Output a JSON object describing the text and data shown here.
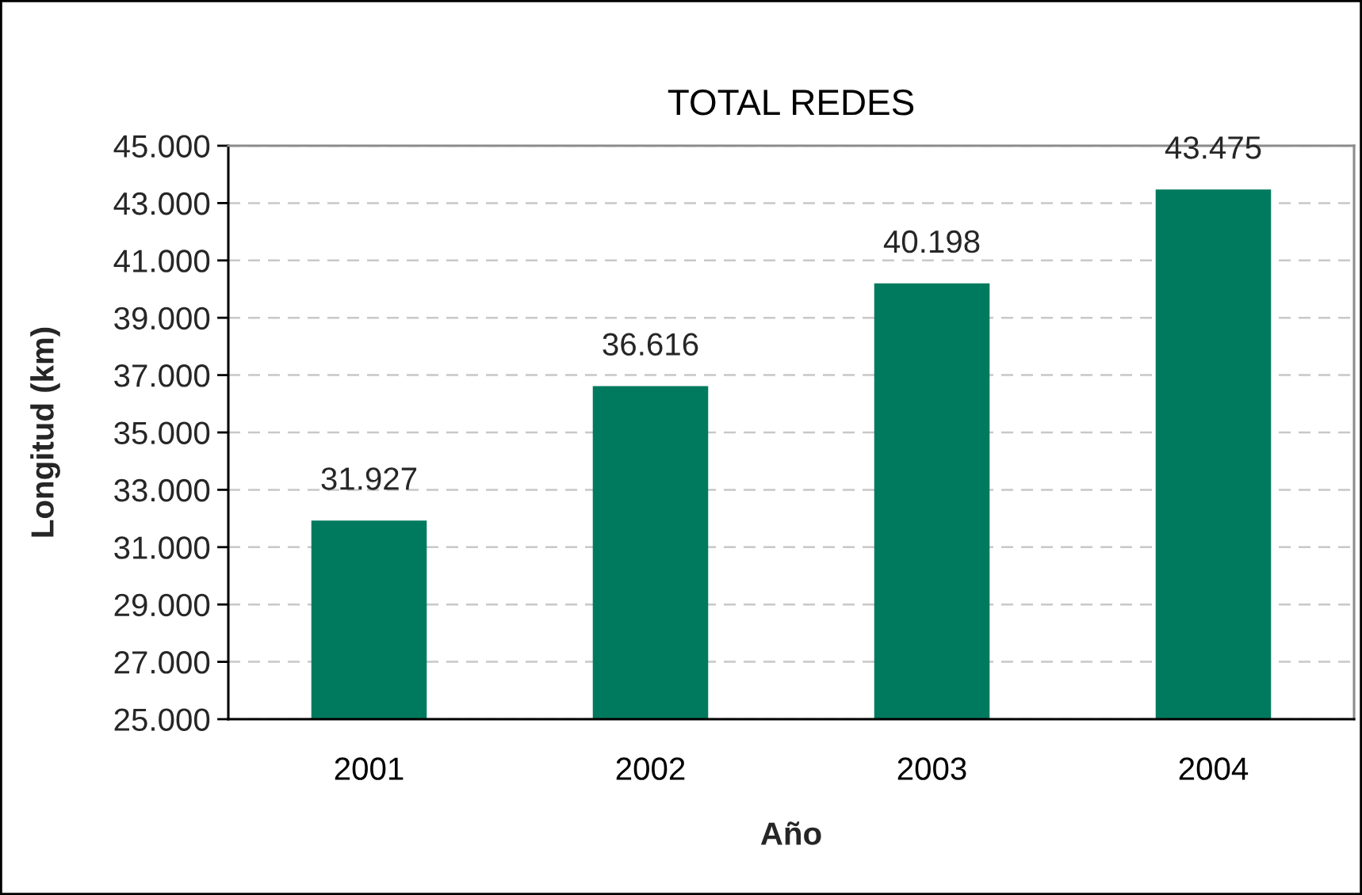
{
  "chart_data": {
    "type": "bar",
    "title": "TOTAL REDES",
    "xlabel": "Año",
    "ylabel": "Longitud (km)",
    "categories": [
      "2001",
      "2002",
      "2003",
      "2004"
    ],
    "values": [
      31927,
      36616,
      40198,
      43475
    ],
    "color": "#007a5e",
    "value_labels": [
      "31.927",
      "36.616",
      "40.198",
      "43.475"
    ],
    "ylim": [
      25000,
      45000
    ],
    "yticks": [
      {
        "value": 25000,
        "label": "25.000"
      },
      {
        "value": 27000,
        "label": "27.000"
      },
      {
        "value": 29000,
        "label": "29.000"
      },
      {
        "value": 31000,
        "label": "31.000"
      },
      {
        "value": 33000,
        "label": "33.000"
      },
      {
        "value": 35000,
        "label": "35.000"
      },
      {
        "value": 37000,
        "label": "37.000"
      },
      {
        "value": 39000,
        "label": "39.000"
      },
      {
        "value": 41000,
        "label": "41.000"
      },
      {
        "value": 43000,
        "label": "43.000"
      },
      {
        "value": 45000,
        "label": "45.000"
      }
    ],
    "grid": "y"
  }
}
